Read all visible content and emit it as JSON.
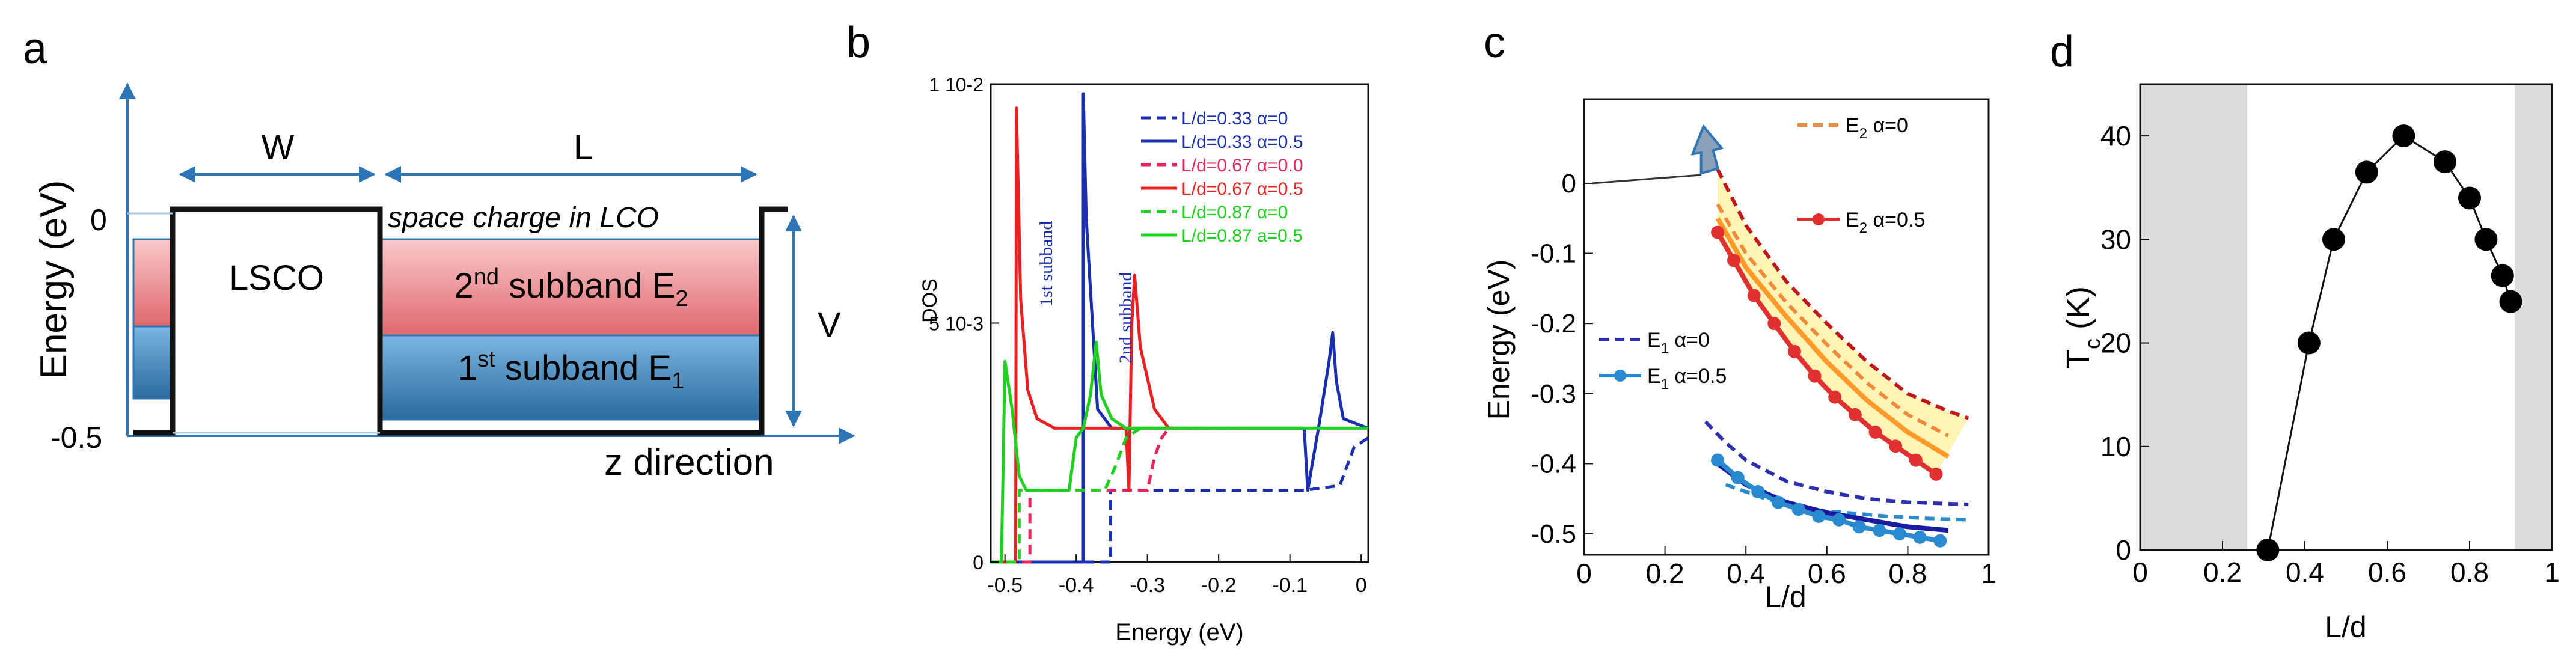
{
  "panel_letters": [
    "a",
    "b",
    "c",
    "d"
  ],
  "panel_a": {
    "ylabel": "Energy (eV)",
    "y_tick_top": "0",
    "y_tick_bottom": "-0.5",
    "w_label": "W",
    "l_label": "L",
    "v_label": "V",
    "lsco_label": "LSCO",
    "space_charge": "space charge in LCO",
    "subband2": {
      "prefix": "2",
      "sup": "nd",
      "text": " subband  E",
      "sub": "2"
    },
    "subband1": {
      "prefix": "1",
      "sup": "st",
      "text": " subband  E",
      "sub": "1"
    },
    "xlabel": "z direction",
    "colors": {
      "subband2": "#f08a8e",
      "subband1": "#4a8fc2",
      "arrows": "#2e75b6"
    }
  },
  "chart_data": [
    {
      "panel": "b",
      "type": "line",
      "xlabel": "Energy (eV)",
      "ylabel": "DOS",
      "xlim": [
        -0.52,
        0.01
      ],
      "ylim": [
        0,
        0.01
      ],
      "x_ticks": [
        "-0.5",
        "-0.4",
        "-0.3",
        "-0.2",
        "-0.1",
        "0"
      ],
      "y_ticks": [
        "0",
        "5 10-3",
        "1 10-2"
      ],
      "annotations": [
        "1st subband",
        "2nd subband"
      ],
      "series": [
        {
          "name": "L/d=0.33 α=0",
          "color": "#1a2fb0",
          "dash": "dashed",
          "points": [
            [
              -0.52,
              0.0
            ],
            [
              -0.352,
              0.0
            ],
            [
              -0.352,
              0.0015
            ],
            [
              -0.08,
              0.0015
            ],
            [
              -0.03,
              0.0016
            ],
            [
              -0.02,
              0.002
            ],
            [
              -0.01,
              0.0024
            ],
            [
              0.01,
              0.0026
            ]
          ]
        },
        {
          "name": "L/d=0.33 α=0.5",
          "color": "#1a2fb0",
          "dash": "solid",
          "points": [
            [
              -0.52,
              0.0
            ],
            [
              -0.39,
              0.0
            ],
            [
              -0.39,
              0.0098
            ],
            [
              -0.386,
              0.0072
            ],
            [
              -0.37,
              0.0032
            ],
            [
              -0.35,
              0.0028
            ],
            [
              -0.1,
              0.0028
            ],
            [
              -0.08,
              0.0028
            ],
            [
              -0.075,
              0.0015
            ],
            [
              -0.06,
              0.0028
            ],
            [
              -0.045,
              0.0042
            ],
            [
              -0.04,
              0.0048
            ],
            [
              -0.035,
              0.0038
            ],
            [
              -0.025,
              0.003
            ],
            [
              0.01,
              0.0028
            ]
          ]
        },
        {
          "name": "L/d=0.67 α=0.0",
          "color": "#e8245a",
          "dash": "dashed",
          "points": [
            [
              -0.52,
              0.0
            ],
            [
              -0.465,
              0.0
            ],
            [
              -0.465,
              0.0015
            ],
            [
              -0.3,
              0.0015
            ],
            [
              -0.29,
              0.0022
            ],
            [
              -0.28,
              0.0026
            ],
            [
              -0.27,
              0.0028
            ],
            [
              -0.26,
              0.0028
            ]
          ]
        },
        {
          "name": "L/d=0.67 α=0.5",
          "color": "#e82020",
          "dash": "solid",
          "points": [
            [
              -0.52,
              0.0
            ],
            [
              -0.485,
              0.0
            ],
            [
              -0.484,
              0.0095
            ],
            [
              -0.478,
              0.0055
            ],
            [
              -0.468,
              0.0036
            ],
            [
              -0.455,
              0.003
            ],
            [
              -0.43,
              0.0028
            ],
            [
              -0.33,
              0.0028
            ],
            [
              -0.326,
              0.0015
            ],
            [
              -0.322,
              0.005
            ],
            [
              -0.318,
              0.006
            ],
            [
              -0.31,
              0.0045
            ],
            [
              -0.29,
              0.0032
            ],
            [
              -0.27,
              0.0028
            ],
            [
              -0.26,
              0.0028
            ]
          ]
        },
        {
          "name": "L/d=0.87 α=0",
          "color": "#1fd11f",
          "dash": "dashed",
          "points": [
            [
              -0.52,
              0.0
            ],
            [
              -0.48,
              0.0
            ],
            [
              -0.48,
              0.0015
            ],
            [
              -0.36,
              0.0015
            ],
            [
              -0.345,
              0.002
            ],
            [
              -0.33,
              0.0026
            ],
            [
              -0.31,
              0.0028
            ],
            [
              -0.15,
              0.0028
            ]
          ]
        },
        {
          "name": "L/d=0.87 a=0.5",
          "color": "#1fd11f",
          "dash": "solid",
          "points": [
            [
              -0.52,
              0.0
            ],
            [
              -0.505,
              0.0
            ],
            [
              -0.5,
              0.0042
            ],
            [
              -0.49,
              0.0032
            ],
            [
              -0.48,
              0.0018
            ],
            [
              -0.47,
              0.0015
            ],
            [
              -0.41,
              0.0015
            ],
            [
              -0.4,
              0.0026
            ],
            [
              -0.39,
              0.0028
            ],
            [
              -0.38,
              0.0035
            ],
            [
              -0.372,
              0.0046
            ],
            [
              -0.365,
              0.0035
            ],
            [
              -0.35,
              0.003
            ],
            [
              -0.33,
              0.0028
            ],
            [
              0.01,
              0.0028
            ]
          ]
        }
      ]
    },
    {
      "panel": "c",
      "type": "line",
      "xlabel": "L/d",
      "ylabel": "Energy (eV)",
      "xlim": [
        0,
        1
      ],
      "ylim": [
        -0.53,
        0.12
      ],
      "x_ticks": [
        "0",
        "0.2",
        "0.4",
        "0.6",
        "0.8",
        "1"
      ],
      "y_ticks": [
        "0",
        "-0.1",
        "-0.2",
        "-0.3",
        "-0.4",
        "-0.5"
      ],
      "legend": [
        {
          "prefix": "E",
          "sub": "2",
          "suffix": " α=0",
          "color": "#f08a3a",
          "style": "dashed"
        },
        {
          "prefix": "E",
          "sub": "2",
          "suffix": " α=0.5",
          "color": "#e03030",
          "style": "solid-marker"
        },
        {
          "prefix": "E",
          "sub": "1",
          "suffix": " α=0",
          "color": "#2a30b0",
          "style": "dashed"
        },
        {
          "prefix": "E",
          "sub": "1",
          "suffix": " α=0.5",
          "color": "#2a8ad0",
          "style": "solid-marker"
        }
      ],
      "series": [
        {
          "name": "E2 upper dashed",
          "color": "#c0181c",
          "dash": "dashed",
          "x": [
            0.33,
            0.4,
            0.5,
            0.6,
            0.7,
            0.8,
            0.9,
            0.95
          ],
          "y": [
            0.02,
            -0.06,
            -0.14,
            -0.2,
            -0.255,
            -0.3,
            -0.325,
            -0.335
          ]
        },
        {
          "name": "E2 α=0",
          "color": "#f08a3a",
          "dash": "dashed",
          "x": [
            0.33,
            0.4,
            0.5,
            0.6,
            0.7,
            0.8,
            0.9
          ],
          "y": [
            -0.03,
            -0.1,
            -0.17,
            -0.23,
            -0.285,
            -0.33,
            -0.36
          ]
        },
        {
          "name": "E2 mid",
          "color": "#ff9a2a",
          "dash": "solid",
          "x": [
            0.33,
            0.4,
            0.5,
            0.6,
            0.7,
            0.8,
            0.9
          ],
          "y": [
            -0.05,
            -0.12,
            -0.19,
            -0.255,
            -0.31,
            -0.355,
            -0.39
          ]
        },
        {
          "name": "E2 α=0.5",
          "color": "#e03030",
          "dash": "solid",
          "x": [
            0.33,
            0.37,
            0.42,
            0.47,
            0.52,
            0.57,
            0.62,
            0.67,
            0.72,
            0.77,
            0.82,
            0.87
          ],
          "y": [
            -0.07,
            -0.11,
            -0.16,
            -0.2,
            -0.24,
            -0.275,
            -0.305,
            -0.33,
            -0.355,
            -0.375,
            -0.395,
            -0.415
          ]
        },
        {
          "name": "E1 α=0",
          "color": "#2a30b0",
          "dash": "dashed",
          "x": [
            0.3,
            0.35,
            0.4,
            0.5,
            0.6,
            0.7,
            0.8,
            0.9,
            0.95
          ],
          "y": [
            -0.34,
            -0.37,
            -0.395,
            -0.425,
            -0.44,
            -0.45,
            -0.455,
            -0.457,
            -0.458
          ]
        },
        {
          "name": "E1 dashed light",
          "color": "#2a8ad0",
          "dash": "dashed",
          "x": [
            0.35,
            0.45,
            0.55,
            0.65,
            0.75,
            0.85,
            0.95
          ],
          "y": [
            -0.43,
            -0.45,
            -0.465,
            -0.47,
            -0.475,
            -0.478,
            -0.48
          ]
        },
        {
          "name": "E1 dark",
          "color": "#1a1aa0",
          "dash": "solid",
          "x": [
            0.33,
            0.4,
            0.5,
            0.6,
            0.7,
            0.8,
            0.9
          ],
          "y": [
            -0.4,
            -0.43,
            -0.455,
            -0.47,
            -0.48,
            -0.49,
            -0.495
          ]
        },
        {
          "name": "E1 α=0.5",
          "color": "#2a8ad0",
          "dash": "solid",
          "x": [
            0.33,
            0.38,
            0.43,
            0.48,
            0.53,
            0.58,
            0.63,
            0.68,
            0.73,
            0.78,
            0.83,
            0.88
          ],
          "y": [
            -0.395,
            -0.42,
            -0.44,
            -0.455,
            -0.465,
            -0.475,
            -0.48,
            -0.49,
            -0.495,
            -0.5,
            -0.505,
            -0.51
          ]
        }
      ],
      "arrow_label": "0"
    },
    {
      "panel": "d",
      "type": "scatter",
      "xlabel": "L/d",
      "ylabel": "T",
      "ylabel_sub": "c",
      "ylabel_unit": " (K)",
      "xlim": [
        0,
        1
      ],
      "ylim": [
        0,
        45
      ],
      "x_ticks": [
        "0",
        "0.2",
        "0.4",
        "0.6",
        "0.8",
        "1"
      ],
      "y_ticks": [
        "0",
        "10",
        "20",
        "30",
        "40"
      ],
      "shaded_x": [
        [
          0,
          0.26
        ],
        [
          0.91,
          1
        ]
      ],
      "x": [
        0.31,
        0.41,
        0.47,
        0.55,
        0.64,
        0.74,
        0.8,
        0.84,
        0.88,
        0.9
      ],
      "y": [
        0,
        20,
        30,
        36.5,
        40,
        37.5,
        34,
        30,
        26.5,
        24
      ]
    }
  ]
}
